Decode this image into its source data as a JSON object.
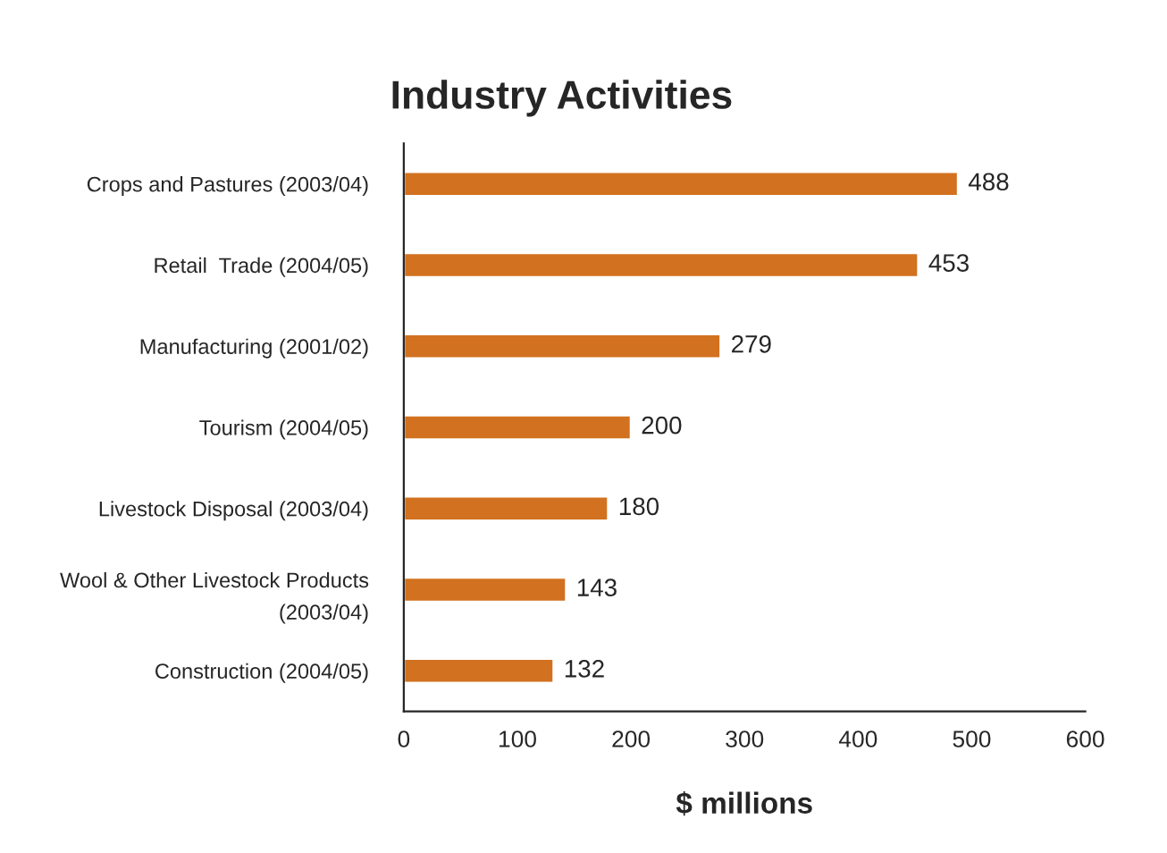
{
  "chart_data": {
    "type": "bar",
    "orientation": "horizontal",
    "title": "Industry Activities",
    "xlabel": "$ millions",
    "categories": [
      "Crops and Pastures (2003/04)",
      "Retail  Trade (2004/05)",
      "Manufacturing (2001/02)",
      "Tourism (2004/05)",
      "Livestock Disposal (2003/04)",
      "Wool & Other Livestock Products\n(2003/04)",
      "Construction (2004/05)"
    ],
    "values": [
      488,
      453,
      279,
      200,
      180,
      143,
      132
    ],
    "color": "#d2711f",
    "xlim": [
      0,
      600
    ],
    "xticks": [
      0,
      100,
      200,
      300,
      400,
      500,
      600
    ],
    "data_labels": true,
    "grid": false,
    "legend": false
  }
}
